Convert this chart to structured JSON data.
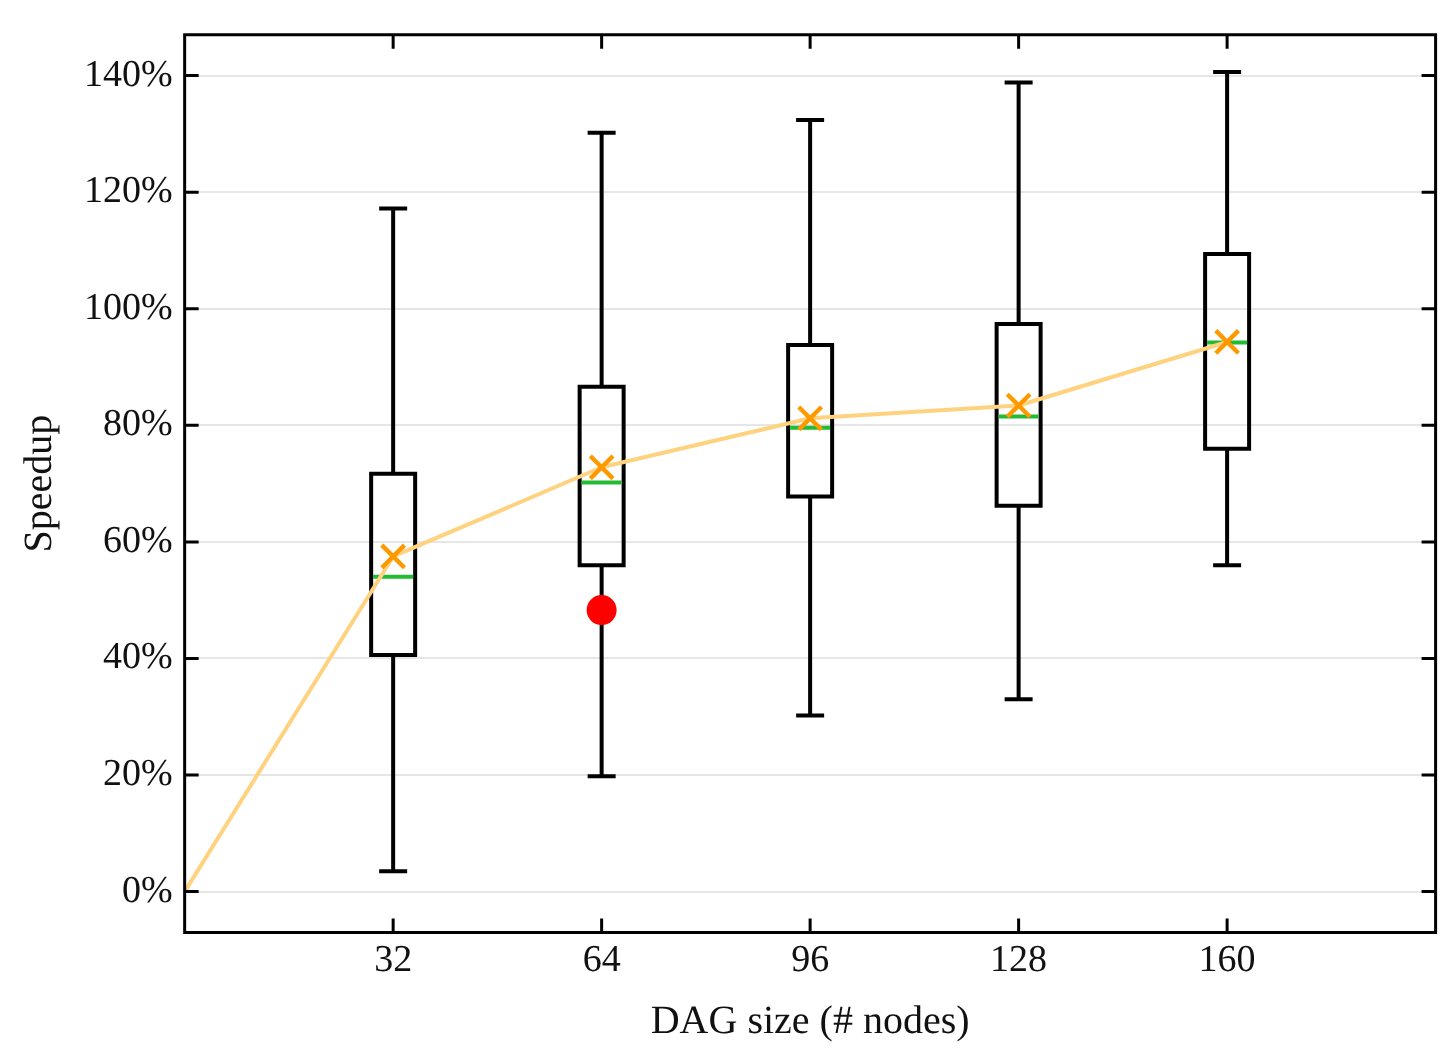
{
  "chart_data": {
    "type": "box",
    "xlabel": "DAG size (# nodes)",
    "ylabel": "Speedup",
    "x": [
      32,
      64,
      96,
      128,
      160
    ],
    "boxes": [
      {
        "low": 3.5,
        "q1": 40.6,
        "median": 54,
        "q3": 71.7,
        "high": 117.2,
        "mean": 57.5
      },
      {
        "low": 19.8,
        "q1": 56,
        "median": 70.2,
        "q3": 86.6,
        "high": 130.2,
        "mean": 72.8,
        "outliers": [
          48.3
        ]
      },
      {
        "low": 30.2,
        "q1": 67.8,
        "median": 79.6,
        "q3": 93.8,
        "high": 132.4,
        "mean": 81.2
      },
      {
        "low": 33,
        "q1": 66.2,
        "median": 81.5,
        "q3": 97.4,
        "high": 138.8,
        "mean": 83.4
      },
      {
        "low": 56,
        "q1": 76,
        "median": 94.2,
        "q3": 109.4,
        "high": 140.6,
        "mean": 94.3
      }
    ],
    "color": "#000000",
    "series": [
      {
        "type": "line",
        "color": "#ffd280",
        "x": [
          0,
          32,
          64,
          96,
          128,
          160
        ],
        "values": [
          0,
          57.5,
          72.8,
          81.2,
          83.4,
          94.3
        ]
      }
    ],
    "xlim": [
      0,
      192
    ],
    "xticks": [
      32,
      64,
      96,
      128,
      160
    ],
    "ylim": [
      -7,
      147
    ],
    "yticks": [
      {
        "value": 0,
        "label": "0%"
      },
      {
        "value": 20,
        "label": "20%"
      },
      {
        "value": 40,
        "label": "40%"
      },
      {
        "value": 60,
        "label": "60%"
      },
      {
        "value": 80,
        "label": "80%"
      },
      {
        "value": 100,
        "label": "100%"
      },
      {
        "value": 120,
        "label": "120%"
      },
      {
        "value": 140,
        "label": "140%"
      }
    ],
    "grid": "y",
    "legend": false,
    "marker": "none"
  }
}
